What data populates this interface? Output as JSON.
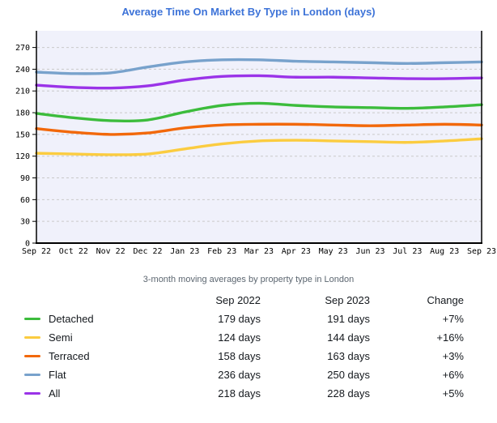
{
  "title": "Average Time On Market By Type in London (days)",
  "subtitle": "3-month moving averages by property type in London",
  "colors": {
    "title": "#3d73d8",
    "plot_bg": "#f0f1fb",
    "grid": "#c9c9c9",
    "axis": "#000000",
    "detached": "#3cbc3c",
    "semi": "#fbcc40",
    "terraced": "#f2680a",
    "flat": "#78a2cc",
    "all": "#9a33e8"
  },
  "chart_data": {
    "type": "line",
    "title": "Average Time On Market By Type in London (days)",
    "xlabel": "",
    "ylabel": "",
    "ylim": [
      0,
      293
    ],
    "yticks": [
      0,
      30,
      60,
      90,
      120,
      150,
      180,
      210,
      240,
      270
    ],
    "grid": true,
    "legend_position": "table-below",
    "x": [
      "Sep 22",
      "Oct 22",
      "Nov 22",
      "Dec 22",
      "Jan 23",
      "Feb 23",
      "Mar 23",
      "Apr 23",
      "May 23",
      "Jun 23",
      "Jul 23",
      "Aug 23",
      "Sep 23"
    ],
    "series": [
      {
        "name": "Detached",
        "color": "#3cbc3c",
        "values": [
          179,
          173,
          169,
          170,
          181,
          190,
          193,
          190,
          188,
          187,
          186,
          188,
          191
        ]
      },
      {
        "name": "Semi",
        "color": "#fbcc40",
        "values": [
          124,
          123,
          122,
          123,
          130,
          137,
          141,
          142,
          141,
          140,
          139,
          141,
          144
        ]
      },
      {
        "name": "Terraced",
        "color": "#f2680a",
        "values": [
          158,
          153,
          150,
          152,
          159,
          163,
          164,
          164,
          163,
          162,
          163,
          164,
          163
        ]
      },
      {
        "name": "Flat",
        "color": "#78a2cc",
        "values": [
          236,
          234,
          235,
          243,
          250,
          253,
          253,
          251,
          250,
          249,
          248,
          249,
          250
        ]
      },
      {
        "name": "All",
        "color": "#9a33e8",
        "values": [
          218,
          215,
          214,
          217,
          225,
          230,
          231,
          229,
          229,
          228,
          227,
          227,
          228
        ]
      }
    ]
  },
  "table": {
    "col_headers": [
      "Sep 2022",
      "Sep 2023",
      "Change"
    ],
    "rows": [
      {
        "label": "Detached",
        "color": "#3cbc3c",
        "sep_2022": "179 days",
        "sep_2023": "191 days",
        "change": "+7%"
      },
      {
        "label": "Semi",
        "color": "#fbcc40",
        "sep_2022": "124 days",
        "sep_2023": "144 days",
        "change": "+16%"
      },
      {
        "label": "Terraced",
        "color": "#f2680a",
        "sep_2022": "158 days",
        "sep_2023": "163 days",
        "change": "+3%"
      },
      {
        "label": "Flat",
        "color": "#78a2cc",
        "sep_2022": "236 days",
        "sep_2023": "250 days",
        "change": "+6%"
      },
      {
        "label": "All",
        "color": "#9a33e8",
        "sep_2022": "218 days",
        "sep_2023": "228 days",
        "change": "+5%"
      }
    ]
  }
}
